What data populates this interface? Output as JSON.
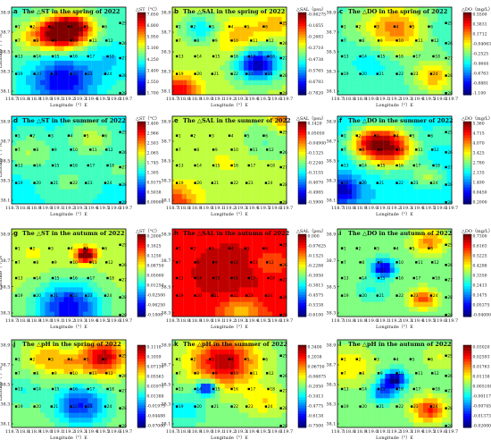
{
  "figure": {
    "common": {
      "xtick_labels": [
        "118.7",
        "118.8",
        "118.9",
        "119.0",
        "119.1",
        "119.2",
        "119.3",
        "119.4",
        "119.5",
        "119.6",
        "119.7"
      ],
      "ytick_labels": [
        "38.9",
        "38.7",
        "38.5",
        "38.3",
        "38.1"
      ],
      "ytick_labels_alt": [
        "38.9",
        "38.7",
        "38.5",
        "38.3"
      ],
      "xlabel": "Longitude（°）E",
      "ylabel": "Latitude（°）N",
      "stations": [
        "1",
        "2",
        "3",
        "4",
        "5",
        "6",
        "7",
        "8",
        "9",
        "10",
        "11",
        "12",
        "13",
        "14",
        "15",
        "16",
        "17",
        "18",
        "19",
        "20",
        "21",
        "22",
        "23",
        "24",
        "25",
        "26",
        "27",
        "28",
        "29"
      ]
    },
    "colors": {
      "low": "#0000ff",
      "mid": "#00e000",
      "high": "#ff0000"
    }
  },
  "chart_data": [
    {
      "type": "heatmap",
      "panel": "a",
      "title": "The △ST in the spring of 2022",
      "xlabel": "Longitude（°）E",
      "ylabel": "Latitude（°）N",
      "unit": "△ST（°C）",
      "colorbar_ticks": [
        "7.650",
        "6.800",
        "5.950",
        "5.100",
        "4.250",
        "3.400",
        "2.550",
        "1.700"
      ],
      "range": [
        1.7,
        8.0
      ],
      "x": [
        118.7,
        119.7
      ],
      "y": [
        38.1,
        38.95
      ]
    },
    {
      "type": "heatmap",
      "panel": "b",
      "title": "The △SAL in the spring of 2022",
      "xlabel": "Longitude（°）E",
      "ylabel": "Latitude（°）N",
      "unit": "△SAL（psu）",
      "colorbar_ticks": [
        "-0.06275",
        "-0.1655",
        "-0.2683",
        "-0.3710",
        "-0.4738",
        "-0.5765",
        "-0.6793",
        "-0.7820"
      ],
      "range": [
        -0.782,
        -0.06
      ],
      "x": [
        118.7,
        119.7
      ],
      "y": [
        38.1,
        38.95
      ]
    },
    {
      "type": "heatmap",
      "panel": "c",
      "title": "The △DO in the spring of 2022",
      "xlabel": "Longitude（°）E",
      "ylabel": "Latitude（°）N",
      "unit": "△DO（mg/L）",
      "colorbar_ticks": [
        "0.5500",
        "0.3831",
        "0.1712",
        "-0.04063",
        "-0.2525",
        "-0.4644",
        "-0.6763",
        "-0.8881",
        "-1.100"
      ],
      "range": [
        -1.1,
        0.55
      ],
      "x": [
        118.7,
        119.7
      ],
      "y": [
        38.1,
        38.95
      ]
    },
    {
      "type": "heatmap",
      "panel": "d",
      "title": "The △ST in the summer of 2022",
      "xlabel": "Longitude（°）E",
      "ylabel": "Latitude（°）N",
      "unit": "△ST（°C）",
      "colorbar_ticks": [
        "3.400",
        "2.966",
        "2.503",
        "2.065",
        "1.745",
        "1.305",
        "0.9175",
        "0.5038",
        "0.09000"
      ],
      "range": [
        0.09,
        3.4
      ],
      "x": [
        118.7,
        119.7
      ],
      "y": [
        38.1,
        38.95
      ]
    },
    {
      "type": "heatmap",
      "panel": "e",
      "title": "The △SAL in the summer of 2022",
      "xlabel": "Longitude（°）E",
      "ylabel": "Latitude（°）N",
      "unit": "△SAL（psu）",
      "colorbar_ticks": [
        "0.1420",
        "0.05050",
        "-0.04900",
        "-0.1325",
        "-0.2240",
        "-0.3155",
        "-0.4070",
        "-0.4985",
        "-0.5900"
      ],
      "range": [
        -0.59,
        0.142
      ],
      "x": [
        118.7,
        119.7
      ],
      "y": [
        38.1,
        38.95
      ]
    },
    {
      "type": "heatmap",
      "panel": "f",
      "title": "The △DO in the summer of 2022",
      "xlabel": "Longitude（°）E",
      "ylabel": "Latitude（°）N",
      "unit": "△DO（mg/L）",
      "colorbar_ticks": [
        "5.360",
        "4.715",
        "4.070",
        "3.425",
        "2.780",
        "2.135",
        "1.490",
        "0.8450",
        "0.2000"
      ],
      "range": [
        0.2,
        5.36
      ],
      "x": [
        118.7,
        119.7
      ],
      "y": [
        38.1,
        38.95
      ]
    },
    {
      "type": "heatmap",
      "panel": "g",
      "title": "The △ST in the autumn of 2022",
      "xlabel": "Longitude（°）E",
      "ylabel": "Latitude（°）N",
      "unit": "△ST（°C）",
      "colorbar_ticks": [
        "0.2000",
        "0.1625",
        "0.1250",
        "0.08750",
        "0.05000",
        "0.01250",
        "-0.02500",
        "-0.06250",
        "-0.1000"
      ],
      "range": [
        -0.1,
        0.2
      ],
      "x": [
        118.7,
        119.7
      ],
      "y": [
        38.1,
        38.95
      ]
    },
    {
      "type": "heatmap",
      "panel": "h",
      "title": "The △SAL in the autumn of 2022",
      "xlabel": "Longitude（°）E",
      "ylabel": "Latitude（°）N",
      "unit": "△SAL（psu）",
      "colorbar_ticks": [
        "0.000",
        "-0.07625",
        "-0.1525",
        "-0.2288",
        "-0.3050",
        "-0.3813",
        "-0.4575",
        "-0.5338",
        "-0.6100"
      ],
      "range": [
        -0.61,
        0.0
      ],
      "x": [
        118.7,
        119.7
      ],
      "y": [
        38.1,
        38.95
      ]
    },
    {
      "type": "heatmap",
      "panel": "i",
      "title": "The △DO in the autumn of 2022",
      "xlabel": "Longitude（°）E",
      "ylabel": "Latitude（°）N",
      "unit": "△DO（mg/L）",
      "colorbar_ticks": [
        "0.7300",
        "0.6163",
        "0.5225",
        "0.4288",
        "0.3350",
        "0.2413",
        "0.1475",
        "0.05375",
        "-0.04000"
      ],
      "range": [
        -0.04,
        0.73
      ],
      "x": [
        118.7,
        119.7
      ],
      "y": [
        38.1,
        38.95
      ]
    },
    {
      "type": "heatmap",
      "panel": "j",
      "title": "The △pH in the spring of 2022",
      "xlabel": "Longitude（°）E",
      "ylabel": "Latitude（°）N",
      "unit": "",
      "colorbar_ticks": [
        "0.1110",
        "0.1059",
        "0.07130",
        "0.05563",
        "0.03975",
        "0.01388",
        "-0.01975",
        "-0.04488",
        "-0.07000"
      ],
      "range": [
        -0.07,
        0.111
      ],
      "x": [
        118.7,
        119.7
      ],
      "y": [
        38.1,
        38.95
      ]
    },
    {
      "type": "heatmap",
      "panel": "k",
      "title": "The △pH in the summer of 2022",
      "xlabel": "Longitude（°）E",
      "ylabel": "Latitude（°）N",
      "unit": "",
      "colorbar_ticks": [
        "0.3400",
        "0.2038",
        "0.06750",
        "-0.06875",
        "-0.2050",
        "-0.3413",
        "-0.4775",
        "-0.6138",
        "-0.7500"
      ],
      "range": [
        -0.75,
        0.34
      ],
      "x": [
        118.7,
        119.7
      ],
      "y": [
        38.1,
        38.95
      ]
    },
    {
      "type": "heatmap",
      "panel": "l",
      "title": "The △pH in the autumn of 2022",
      "xlabel": "Longitude（°）E",
      "ylabel": "Latitude（°）N",
      "unit": "",
      "colorbar_ticks": [
        "0.03020",
        "0.02593",
        "0.01763",
        "0.01138",
        "0.005100",
        "-0.001175",
        "-0.007450",
        "-0.01373",
        "-0.02000"
      ],
      "range": [
        -0.02,
        0.0302
      ],
      "x": [
        118.7,
        119.7
      ],
      "y": [
        38.1,
        38.95
      ]
    }
  ]
}
